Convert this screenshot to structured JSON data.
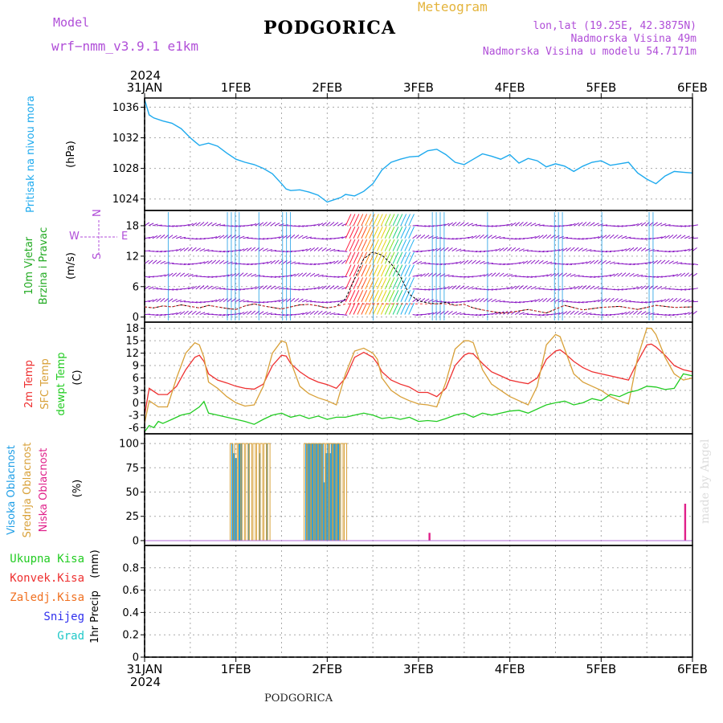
{
  "header": {
    "model_label": "Model",
    "model_name": "wrf−nmm_v3.9.1  e1km",
    "station": "PODGORICA",
    "meteogram_label": "Meteogram",
    "lonlat": "lon,lat (19.25E, 42.3875N)",
    "elevation": "Nadmorska Visina 49m",
    "model_elevation": "Nadmorska Visina u modelu 54.7171m",
    "footer_station": "PODGORICA",
    "watermark": "made by Angel"
  },
  "colors": {
    "pressure": "#1eaaee",
    "wind": "#8a17c4",
    "temp2m": "#ee3030",
    "sfc": "#d8a038",
    "dewpt": "#22cc22",
    "cloud_high": "#1e9ee6",
    "cloud_mid": "#d8a038",
    "cloud_low": "#e0208a",
    "header_purple": "#b04ed8",
    "header_gold": "#e4b43c"
  },
  "chart_data": [
    {
      "type": "line",
      "panel": "pressure",
      "ylabel_parts": [
        "Pritisak na nivou mora",
        "(hPa)"
      ],
      "yticks": [
        1024,
        1028,
        1032,
        1036
      ],
      "ylim": [
        1022.5,
        1037.2
      ],
      "x_top_year": "2024",
      "x_ticks": [
        "31JAN",
        "1FEB",
        "2FEB",
        "3FEB",
        "4FEB",
        "5FEB",
        "6FEB"
      ],
      "series": [
        {
          "x": [
            0,
            0.05,
            0.1,
            0.2,
            0.3,
            0.4,
            0.5,
            0.55,
            0.6,
            0.7,
            0.8,
            0.9,
            1.0,
            1.1,
            1.2,
            1.3,
            1.4,
            1.5,
            1.55,
            1.6,
            1.7,
            1.8,
            1.9,
            2.0,
            2.1,
            2.15,
            2.2,
            2.3,
            2.4,
            2.5,
            2.6,
            2.7,
            2.8,
            2.9,
            3.0,
            3.1,
            3.2,
            3.3,
            3.4,
            3.5,
            3.6,
            3.7,
            3.8,
            3.9,
            4.0,
            4.1,
            4.2,
            4.3,
            4.4,
            4.5,
            4.6,
            4.7,
            4.8,
            4.9,
            5.0,
            5.1,
            5.2,
            5.3,
            5.4,
            5.5,
            5.6,
            5.7,
            5.8,
            5.9,
            6.0
          ],
          "values": [
            1037,
            1035,
            1034.6,
            1034.2,
            1033.9,
            1033.2,
            1032,
            1031.5,
            1031,
            1031.3,
            1030.9,
            1030.0,
            1029.2,
            1028.8,
            1028.5,
            1028.0,
            1027.3,
            1026.0,
            1025.3,
            1025.1,
            1025.2,
            1024.9,
            1024.5,
            1023.6,
            1024.0,
            1024.2,
            1024.6,
            1024.4,
            1025.0,
            1026.0,
            1027.8,
            1028.8,
            1029.2,
            1029.5,
            1029.6,
            1030.3,
            1030.5,
            1029.8,
            1028.8,
            1028.5,
            1029.2,
            1029.9,
            1029.6,
            1029.2,
            1029.8,
            1028.7,
            1029.3,
            1029.0,
            1028.2,
            1028.6,
            1028.3,
            1027.6,
            1028.3,
            1028.8,
            1029.0,
            1028.4,
            1028.6,
            1028.8,
            1027.4,
            1026.6,
            1026.0,
            1027.0,
            1027.6,
            1027.5,
            1027.4
          ]
        }
      ]
    },
    {
      "type": "line",
      "panel": "wind",
      "ylabel_parts": [
        "10m Vjetar",
        "Brzina i Pravac",
        "(m/s)"
      ],
      "compass_labels": {
        "north": "N",
        "west": "W",
        "east": "E",
        "south": "S"
      },
      "yticks": [
        0,
        6,
        12,
        18
      ],
      "ylim": [
        -1,
        21
      ],
      "series": [
        {
          "name": "speed",
          "x": [
            0,
            0.1,
            0.2,
            0.3,
            0.4,
            0.5,
            0.6,
            0.7,
            0.8,
            0.9,
            1.0,
            1.1,
            1.2,
            1.3,
            1.4,
            1.5,
            1.6,
            1.7,
            1.8,
            1.9,
            2.0,
            2.1,
            2.2,
            2.3,
            2.4,
            2.5,
            2.6,
            2.7,
            2.8,
            2.9,
            3.0,
            3.1,
            3.2,
            3.3,
            3.4,
            3.5,
            3.6,
            3.7,
            3.8,
            3.9,
            4.0,
            4.2,
            4.4,
            4.6,
            4.8,
            5.0,
            5.2,
            5.4,
            5.6,
            5.8,
            6.0
          ],
          "values": [
            2,
            1.8,
            2.2,
            2.0,
            2.4,
            2.1,
            1.8,
            2.3,
            2.0,
            1.7,
            1.5,
            2.2,
            2.6,
            2.2,
            1.9,
            1.6,
            2.0,
            2.4,
            2.5,
            2.2,
            1.8,
            2.1,
            3.6,
            7.5,
            11.5,
            12.8,
            12.2,
            10.5,
            8.0,
            4.5,
            3.2,
            2.8,
            2.6,
            2.9,
            2.3,
            2.5,
            1.8,
            1.4,
            1.1,
            0.8,
            0.9,
            1.5,
            0.8,
            2.3,
            1.4,
            1.9,
            2.1,
            1.5,
            2.3,
            1.9,
            2.0
          ]
        }
      ]
    },
    {
      "type": "line",
      "panel": "temperature",
      "ylabel_parts": [
        "2m Temp",
        "SFC Temp",
        "dewpt Temp",
        "(C)"
      ],
      "yticks": [
        -6,
        -3,
        0,
        3,
        6,
        9,
        12,
        15,
        18
      ],
      "ylim": [
        -7.5,
        19.5
      ],
      "series": [
        {
          "name": "2m Temp",
          "x": [
            0,
            0.05,
            0.15,
            0.25,
            0.35,
            0.45,
            0.55,
            0.6,
            0.65,
            0.7,
            0.8,
            0.9,
            1.0,
            1.1,
            1.2,
            1.3,
            1.4,
            1.5,
            1.55,
            1.6,
            1.7,
            1.8,
            1.9,
            2.0,
            2.1,
            2.2,
            2.3,
            2.4,
            2.5,
            2.55,
            2.6,
            2.7,
            2.8,
            2.9,
            3.0,
            3.1,
            3.2,
            3.3,
            3.4,
            3.5,
            3.55,
            3.6,
            3.7,
            3.8,
            3.9,
            4.0,
            4.1,
            4.2,
            4.3,
            4.4,
            4.5,
            4.55,
            4.6,
            4.7,
            4.8,
            4.9,
            5.0,
            5.1,
            5.2,
            5.3,
            5.4,
            5.5,
            5.55,
            5.6,
            5.7,
            5.8,
            5.9,
            6.0
          ],
          "values": [
            -3,
            3.5,
            2,
            2,
            4,
            8,
            11,
            11.5,
            10,
            7,
            5.5,
            4.8,
            4,
            3.5,
            3.3,
            4.5,
            9,
            11.5,
            11.3,
            9.5,
            7.5,
            6,
            5,
            4.4,
            3.5,
            6,
            11,
            12.2,
            11,
            9.5,
            7.5,
            5.5,
            4.5,
            3.8,
            2.5,
            2.5,
            1.5,
            3.5,
            9,
            11.5,
            12,
            11.8,
            9.5,
            7.5,
            6.5,
            5.5,
            5.0,
            4.6,
            6,
            10.5,
            12.5,
            12.8,
            12,
            10,
            8.5,
            7.5,
            7,
            6.5,
            6,
            5.5,
            10,
            14,
            14.2,
            13.5,
            11.5,
            9,
            8,
            7.5
          ]
        },
        {
          "name": "SFC Temp",
          "x": [
            0,
            0.05,
            0.15,
            0.25,
            0.35,
            0.45,
            0.55,
            0.6,
            0.65,
            0.7,
            0.8,
            0.9,
            1.0,
            1.1,
            1.2,
            1.3,
            1.4,
            1.5,
            1.55,
            1.6,
            1.7,
            1.8,
            1.9,
            2.0,
            2.1,
            2.2,
            2.3,
            2.4,
            2.5,
            2.55,
            2.6,
            2.7,
            2.8,
            2.9,
            3.0,
            3.1,
            3.2,
            3.3,
            3.4,
            3.5,
            3.55,
            3.6,
            3.7,
            3.8,
            3.9,
            4.0,
            4.1,
            4.2,
            4.3,
            4.4,
            4.5,
            4.55,
            4.6,
            4.7,
            4.8,
            4.9,
            5.0,
            5.1,
            5.2,
            5.3,
            5.4,
            5.5,
            5.55,
            5.6,
            5.7,
            5.8,
            5.9,
            6.0
          ],
          "values": [
            -5,
            0.5,
            -1,
            -1,
            6,
            12,
            14.5,
            14,
            11,
            5,
            3.5,
            1.5,
            0,
            -0.8,
            -0.5,
            4,
            12,
            15,
            14.5,
            10,
            4,
            2.2,
            1.2,
            0.5,
            -0.5,
            7,
            12.5,
            13.2,
            12,
            10.5,
            6,
            3,
            1.5,
            0.5,
            -0.3,
            -0.5,
            -1,
            5,
            13,
            15,
            15,
            14.5,
            8,
            4.5,
            3,
            1.5,
            0.5,
            -0.5,
            4,
            14,
            16.5,
            16,
            13,
            7,
            5,
            4,
            3,
            1.5,
            0.5,
            -0.3,
            11,
            18,
            18,
            16.5,
            11,
            7,
            5.5,
            6
          ]
        },
        {
          "name": "dewpt Temp",
          "x": [
            0,
            0.05,
            0.1,
            0.15,
            0.2,
            0.3,
            0.4,
            0.5,
            0.6,
            0.65,
            0.7,
            0.8,
            0.9,
            1.0,
            1.1,
            1.2,
            1.3,
            1.4,
            1.5,
            1.6,
            1.7,
            1.8,
            1.9,
            2.0,
            2.1,
            2.2,
            2.3,
            2.4,
            2.5,
            2.6,
            2.7,
            2.8,
            2.9,
            3.0,
            3.1,
            3.2,
            3.3,
            3.4,
            3.5,
            3.6,
            3.7,
            3.8,
            3.9,
            4.0,
            4.1,
            4.2,
            4.3,
            4.4,
            4.5,
            4.6,
            4.7,
            4.8,
            4.9,
            5.0,
            5.1,
            5.2,
            5.3,
            5.4,
            5.5,
            5.6,
            5.7,
            5.8,
            5.9,
            6.0
          ],
          "values": [
            -7,
            -5.5,
            -6,
            -4.5,
            -5,
            -4,
            -3,
            -2.5,
            -1,
            0.3,
            -2.5,
            -3,
            -3.5,
            -4,
            -4.5,
            -5.2,
            -4,
            -3,
            -2.5,
            -3.5,
            -3,
            -3.8,
            -3.2,
            -4,
            -3.5,
            -3.5,
            -3,
            -2.5,
            -3,
            -3.8,
            -3.5,
            -4,
            -3.5,
            -4.5,
            -4.3,
            -4.5,
            -3.8,
            -3,
            -2.5,
            -3.5,
            -2.5,
            -3,
            -2.5,
            -2,
            -1.8,
            -2.5,
            -1.5,
            -0.5,
            0,
            0.4,
            -0.5,
            0,
            1,
            0.5,
            2,
            1.5,
            2.5,
            3,
            4,
            3.8,
            3.2,
            3.5,
            7,
            6.5
          ]
        }
      ]
    },
    {
      "type": "bar",
      "panel": "clouds",
      "ylabel_parts": [
        "Visoka Oblacnost",
        "Srednja Oblacnost",
        "Niska Oblacnost",
        "(%)"
      ],
      "yticks": [
        0,
        25,
        50,
        75,
        100
      ],
      "ylim": [
        -5,
        110
      ],
      "series": [
        {
          "name": "Visoka Oblacnost",
          "x": [
            0.96,
            0.98,
            1.0,
            1.04,
            1.06,
            1.14,
            1.26,
            1.34,
            1.77,
            1.79,
            1.81,
            1.83,
            1.85,
            1.87,
            1.89,
            1.91,
            1.93,
            1.95,
            1.97,
            1.99,
            2.01,
            2.03,
            2.05,
            2.07,
            2.09,
            2.11,
            2.13
          ],
          "values": [
            100,
            90,
            85,
            100,
            100,
            100,
            90,
            100,
            100,
            100,
            100,
            100,
            100,
            100,
            100,
            100,
            100,
            100,
            60,
            90,
            100,
            90,
            100,
            100,
            100,
            100,
            100
          ]
        },
        {
          "name": "Srednja Oblacnost",
          "x": [
            0.95,
            1.0,
            1.04,
            1.08,
            1.12,
            1.16,
            1.2,
            1.24,
            1.28,
            1.32,
            1.36,
            1.76,
            1.8,
            1.84,
            1.88,
            1.92,
            1.96,
            2.0,
            2.04,
            2.08,
            2.12,
            2.16,
            2.2
          ],
          "values": [
            100,
            100,
            100,
            100,
            100,
            100,
            100,
            100,
            100,
            100,
            100,
            100,
            100,
            100,
            100,
            100,
            100,
            100,
            100,
            100,
            100,
            100,
            100
          ]
        },
        {
          "name": "Niska Oblacnost",
          "x": [
            3.12,
            5.92
          ],
          "values": [
            8,
            38
          ]
        }
      ]
    },
    {
      "type": "line",
      "panel": "precipitation",
      "ylabel_parts": [
        "1hr Precip",
        "(mm)"
      ],
      "legend": [
        "Ukupna Kisa",
        "Konvek.Kisa",
        "Zaledj.Kisa",
        "Snijeg",
        "Grad"
      ],
      "legend_colors": [
        "#22cc22",
        "#ee3030",
        "#f07020",
        "#3030ee",
        "#20c8c8"
      ],
      "yticks": [
        0,
        0.2,
        0.4,
        0.6,
        0.8
      ],
      "ylim": [
        0,
        1.0
      ],
      "x_bottom_year": "2024",
      "series": [
        {
          "name": "Ukupna Kisa",
          "x": [
            0,
            6
          ],
          "values": [
            0,
            0
          ]
        }
      ]
    }
  ]
}
